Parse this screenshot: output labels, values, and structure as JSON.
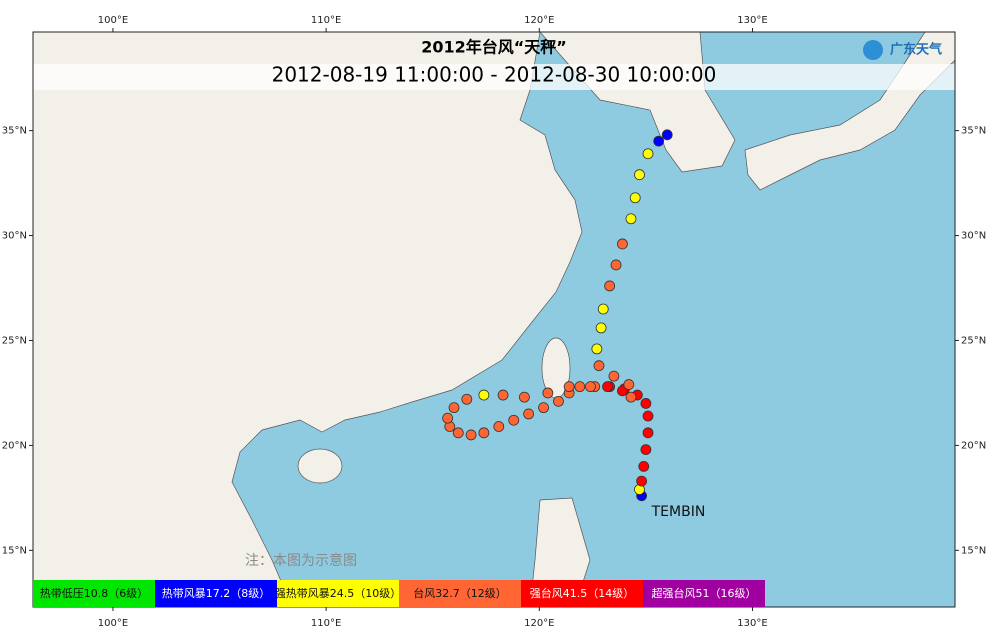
{
  "chart_data": {
    "type": "track-map",
    "title": "2012年台风“天秤”",
    "subtitle": "2012-08-19 11:00:00 - 2012-08-30 10:00:00",
    "logo": "广东天气",
    "note": "注：本图为示意图",
    "storm_label": "TEMBIN",
    "xlim": [
      96.25,
      139.5
    ],
    "ylim": [
      12.3,
      39.7
    ],
    "xticks": [
      {
        "value": 100,
        "label": "100°E"
      },
      {
        "value": 110,
        "label": "110°E"
      },
      {
        "value": 120,
        "label": "120°E"
      },
      {
        "value": 130,
        "label": "130°E"
      }
    ],
    "yticks": [
      {
        "value": 15,
        "label": "15°N"
      },
      {
        "value": 20,
        "label": "20°N"
      },
      {
        "value": 25,
        "label": "25°N"
      },
      {
        "value": 30,
        "label": "30°N"
      },
      {
        "value": 35,
        "label": "35°N"
      }
    ],
    "legend": [
      {
        "label": "热带低压10.8（6级）",
        "color": "#00e600"
      },
      {
        "label": "热带风暴17.2（8级）",
        "color": "#0000ff"
      },
      {
        "label": "强热带风暴24.5（10级）",
        "color": "#ffff00"
      },
      {
        "label": "台风32.7（12级）",
        "color": "#ff6633"
      },
      {
        "label": "强台风41.5（14级）",
        "color": "#ff0000"
      },
      {
        "label": "超强台风51（16级）",
        "color": "#a000a0"
      }
    ],
    "track": [
      {
        "lon": 124.8,
        "lat": 17.6,
        "level": 1
      },
      {
        "lon": 124.7,
        "lat": 17.9,
        "level": 2
      },
      {
        "lon": 124.8,
        "lat": 18.3,
        "level": 4
      },
      {
        "lon": 124.9,
        "lat": 19.0,
        "level": 4
      },
      {
        "lon": 125.0,
        "lat": 19.8,
        "level": 4
      },
      {
        "lon": 125.1,
        "lat": 20.6,
        "level": 4
      },
      {
        "lon": 125.1,
        "lat": 21.4,
        "level": 4
      },
      {
        "lon": 125.0,
        "lat": 22.0,
        "level": 4
      },
      {
        "lon": 124.6,
        "lat": 22.4,
        "level": 4
      },
      {
        "lon": 124.0,
        "lat": 22.7,
        "level": 4
      },
      {
        "lon": 123.3,
        "lat": 22.8,
        "level": 4
      },
      {
        "lon": 122.6,
        "lat": 22.8,
        "level": 3
      },
      {
        "lon": 121.9,
        "lat": 22.8,
        "level": 3
      },
      {
        "lon": 121.4,
        "lat": 22.5,
        "level": 3
      },
      {
        "lon": 120.9,
        "lat": 22.1,
        "level": 3
      },
      {
        "lon": 120.2,
        "lat": 21.8,
        "level": 3
      },
      {
        "lon": 119.5,
        "lat": 21.5,
        "level": 3
      },
      {
        "lon": 118.8,
        "lat": 21.2,
        "level": 3
      },
      {
        "lon": 118.1,
        "lat": 20.9,
        "level": 3
      },
      {
        "lon": 117.4,
        "lat": 20.6,
        "level": 3
      },
      {
        "lon": 116.8,
        "lat": 20.5,
        "level": 3
      },
      {
        "lon": 116.2,
        "lat": 20.6,
        "level": 3
      },
      {
        "lon": 115.8,
        "lat": 20.9,
        "level": 3
      },
      {
        "lon": 115.7,
        "lat": 21.3,
        "level": 3
      },
      {
        "lon": 116.0,
        "lat": 21.8,
        "level": 3
      },
      {
        "lon": 116.6,
        "lat": 22.2,
        "level": 3
      },
      {
        "lon": 117.4,
        "lat": 22.4,
        "level": 2
      },
      {
        "lon": 118.3,
        "lat": 22.4,
        "level": 3
      },
      {
        "lon": 119.3,
        "lat": 22.3,
        "level": 3
      },
      {
        "lon": 120.4,
        "lat": 22.5,
        "level": 3
      },
      {
        "lon": 121.4,
        "lat": 22.8,
        "level": 3
      },
      {
        "lon": 122.4,
        "lat": 22.8,
        "level": 3
      },
      {
        "lon": 123.2,
        "lat": 22.8,
        "level": 4
      },
      {
        "lon": 123.9,
        "lat": 22.6,
        "level": 4
      },
      {
        "lon": 124.3,
        "lat": 22.3,
        "level": 3
      },
      {
        "lon": 124.2,
        "lat": 22.9,
        "level": 3
      },
      {
        "lon": 123.5,
        "lat": 23.3,
        "level": 3
      },
      {
        "lon": 122.8,
        "lat": 23.8,
        "level": 3
      },
      {
        "lon": 122.7,
        "lat": 24.6,
        "level": 2
      },
      {
        "lon": 122.9,
        "lat": 25.6,
        "level": 2
      },
      {
        "lon": 123.0,
        "lat": 26.5,
        "level": 2
      },
      {
        "lon": 123.3,
        "lat": 27.6,
        "level": 3
      },
      {
        "lon": 123.6,
        "lat": 28.6,
        "level": 3
      },
      {
        "lon": 123.9,
        "lat": 29.6,
        "level": 3
      },
      {
        "lon": 124.3,
        "lat": 30.8,
        "level": 2
      },
      {
        "lon": 124.5,
        "lat": 31.8,
        "level": 2
      },
      {
        "lon": 124.7,
        "lat": 32.9,
        "level": 2
      },
      {
        "lon": 125.1,
        "lat": 33.9,
        "level": 2
      },
      {
        "lon": 125.6,
        "lat": 34.5,
        "level": 1
      },
      {
        "lon": 126.0,
        "lat": 34.8,
        "level": 1
      }
    ]
  }
}
